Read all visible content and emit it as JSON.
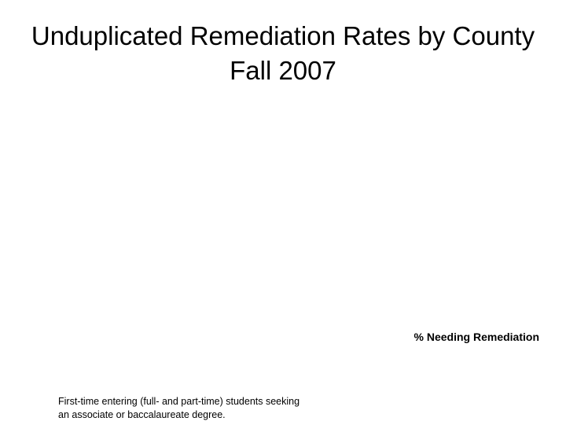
{
  "slide": {
    "title_line1": "Unduplicated Remediation Rates by County",
    "title_line2": "Fall 2007",
    "footnote_line1": "First-time entering (full- and part-time) students seeking",
    "footnote_line2": "an associate or baccalaureate degree."
  },
  "chart_data": {
    "type": "bar",
    "title": "Unduplicated Remediation Rates by County Fall 2007",
    "xlabel": "% Needing Remediation",
    "ylabel": "",
    "categories": [],
    "series": [
      {
        "values": []
      }
    ],
    "grid": false,
    "legend": "none"
  }
}
